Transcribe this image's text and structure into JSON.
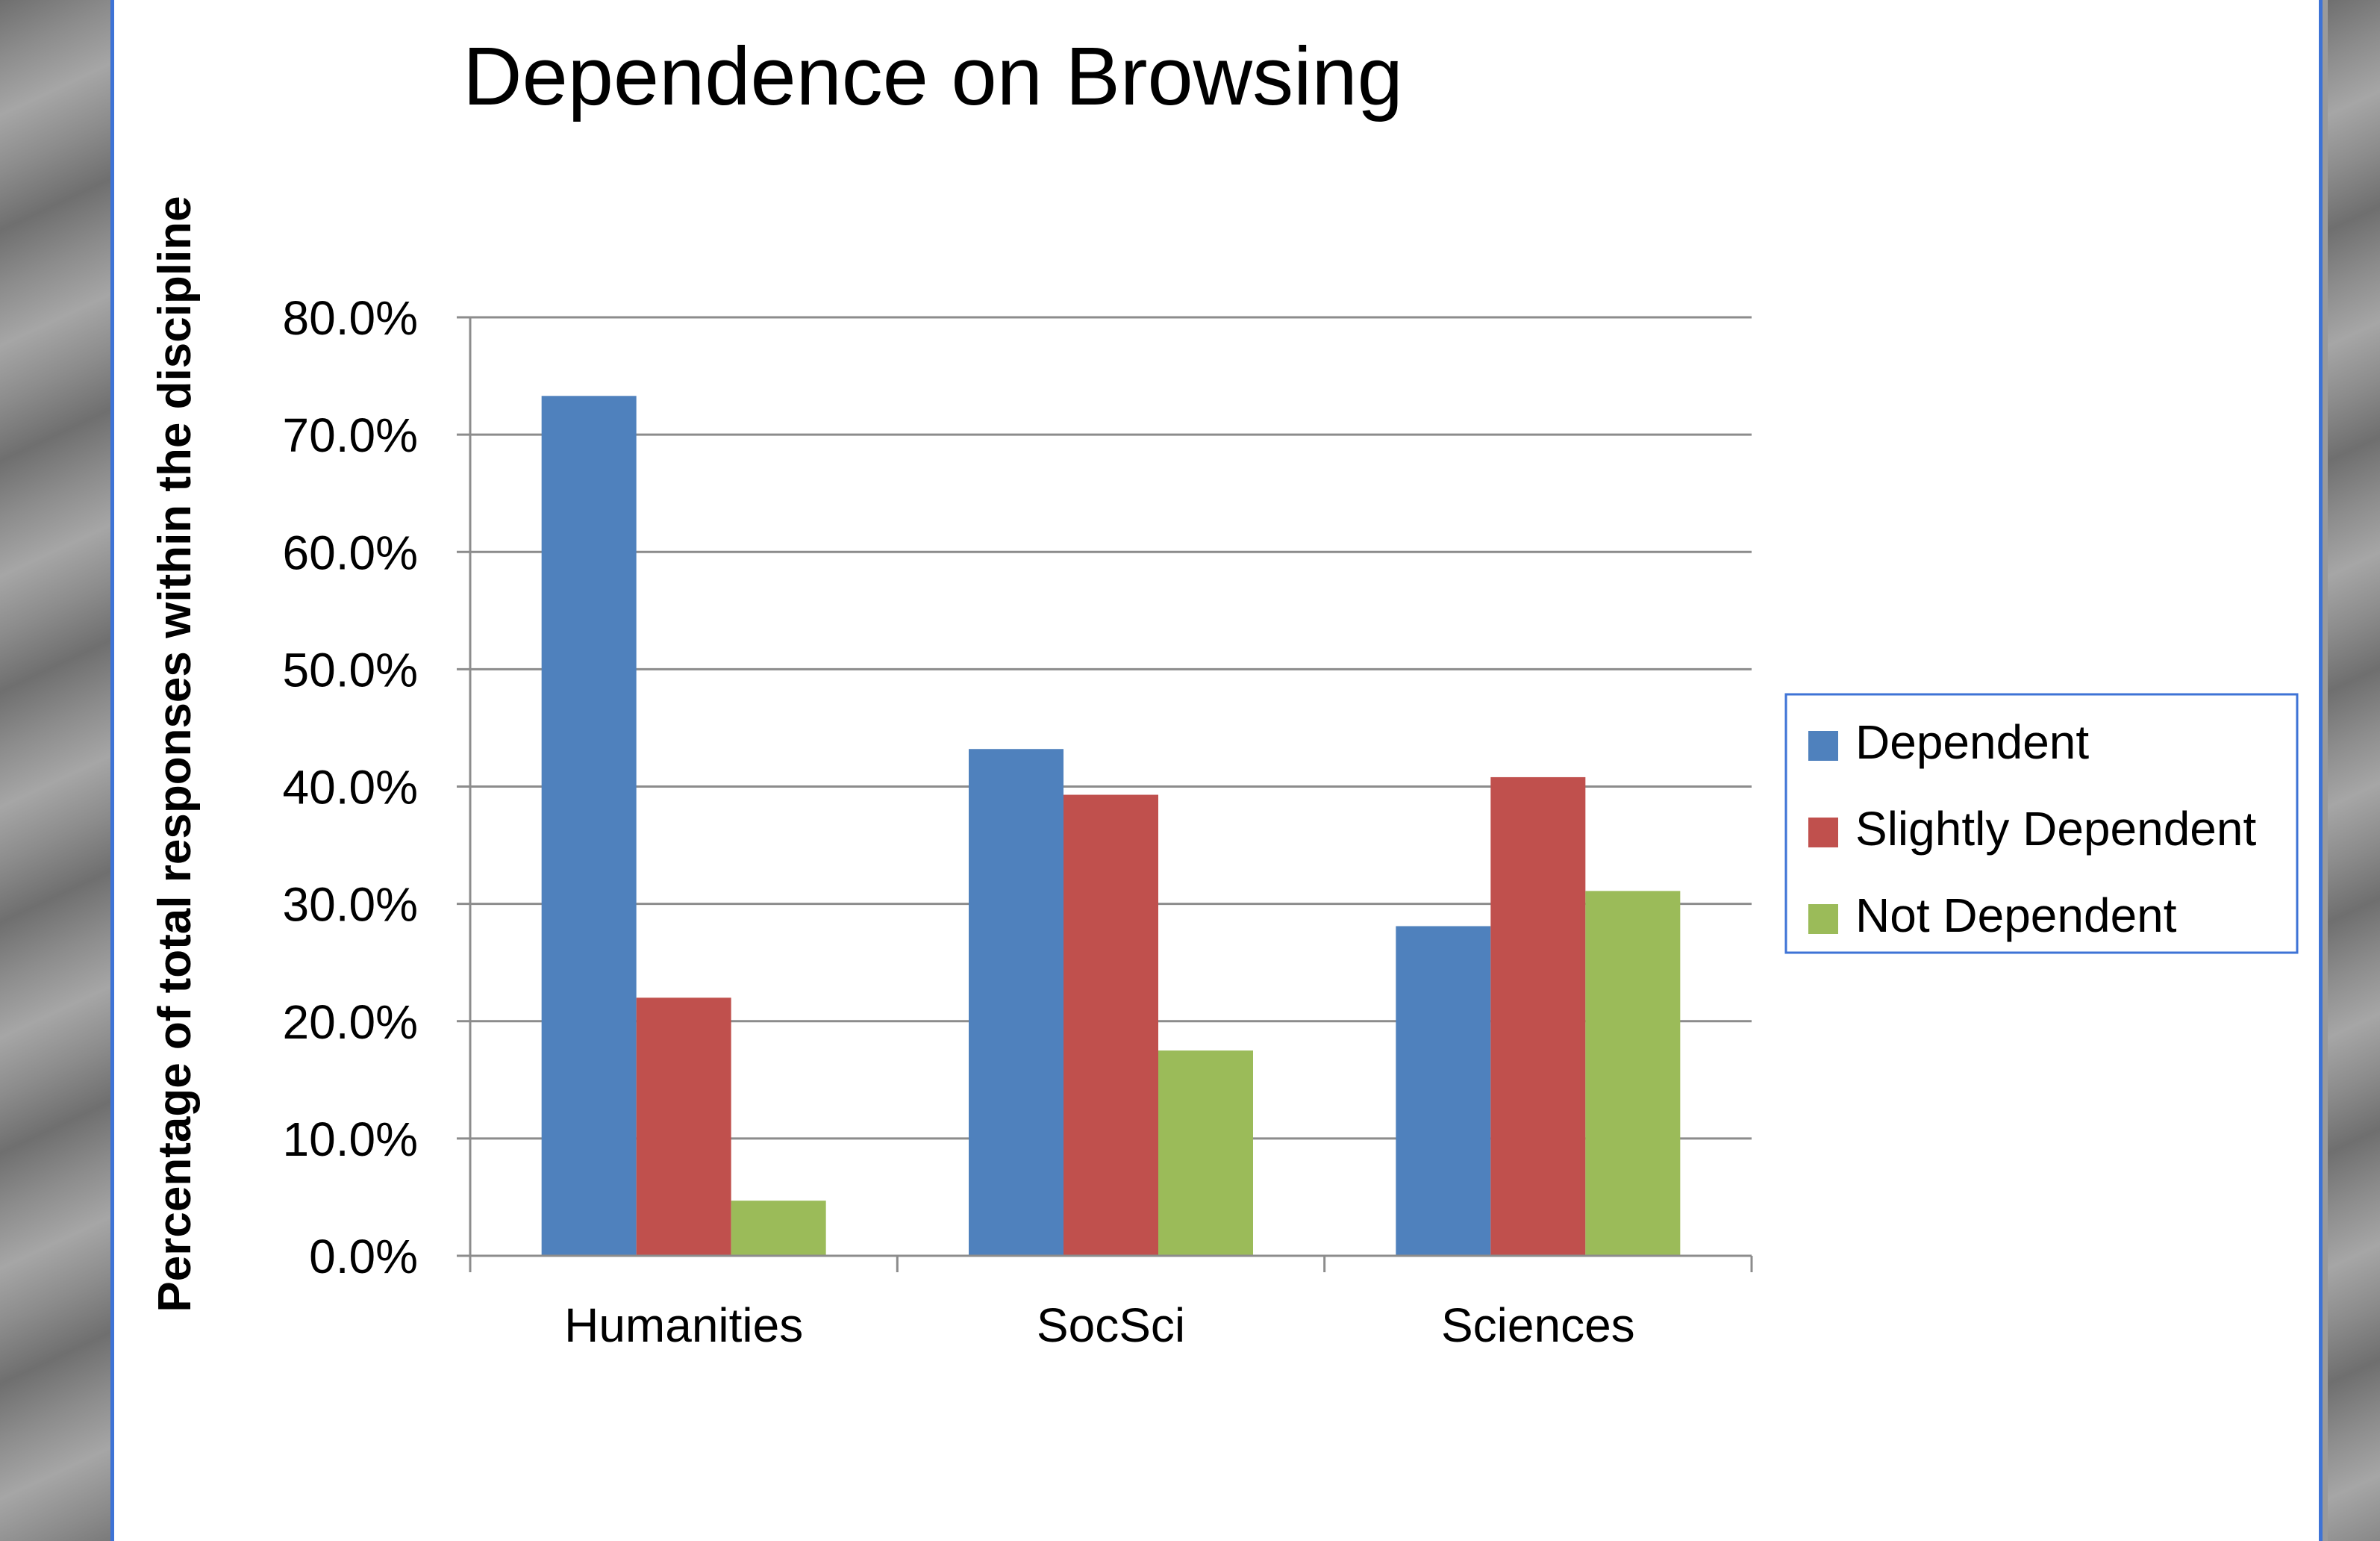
{
  "chart_data": {
    "type": "bar",
    "title": "Dependence on Browsing",
    "ylabel": "Percentage of total responses within the discipline",
    "xlabel": "",
    "categories": [
      "Humanities",
      "SocSci",
      "Sciences"
    ],
    "series": [
      {
        "name": "Dependent",
        "color": "#4f81bd",
        "values": [
          73.3,
          43.2,
          28.1
        ]
      },
      {
        "name": "Slightly Dependent",
        "color": "#c0504d",
        "values": [
          22.0,
          39.3,
          40.8
        ]
      },
      {
        "name": "Not Dependent",
        "color": "#9bbb59",
        "values": [
          4.7,
          17.5,
          31.1
        ]
      }
    ],
    "ylim": [
      0,
      80
    ],
    "yticks": [
      0,
      10,
      20,
      30,
      40,
      50,
      60,
      70,
      80
    ],
    "ytick_labels": [
      "0.0%",
      "10.0%",
      "20.0%",
      "30.0%",
      "40.0%",
      "50.0%",
      "60.0%",
      "70.0%",
      "80.0%"
    ],
    "grid": true,
    "legend_position": "right"
  }
}
